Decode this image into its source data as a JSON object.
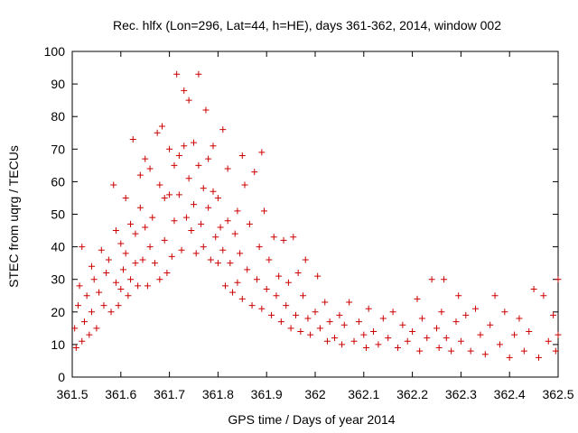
{
  "chart_data": {
    "type": "scatter",
    "title": "Rec. hlfx (Lon=296, Lat=44, h=HE), days 361-362, 2014, window 002",
    "xlabel": "GPS time / Days of year 2014",
    "ylabel": "STEC from uqrg / TECUs",
    "xlim": [
      361.5,
      362.5
    ],
    "ylim": [
      0,
      100
    ],
    "xticks": [
      "361.5",
      "361.6",
      "361.7",
      "361.8",
      "361.9",
      "362",
      "362.1",
      "362.2",
      "362.3",
      "362.4",
      "362.5"
    ],
    "yticks": [
      "0",
      "10",
      "20",
      "30",
      "40",
      "50",
      "60",
      "70",
      "80",
      "90",
      "100"
    ],
    "grid": false,
    "marker": "+",
    "colors": {
      "points": "#cc0000",
      "axis": "#000000"
    },
    "points": [
      [
        361.505,
        15
      ],
      [
        361.508,
        9
      ],
      [
        361.512,
        22
      ],
      [
        361.515,
        28
      ],
      [
        361.52,
        40
      ],
      [
        361.52,
        11
      ],
      [
        361.525,
        17
      ],
      [
        361.53,
        25
      ],
      [
        361.535,
        13
      ],
      [
        361.54,
        34
      ],
      [
        361.54,
        20
      ],
      [
        361.545,
        30
      ],
      [
        361.55,
        15
      ],
      [
        361.555,
        26
      ],
      [
        361.56,
        39
      ],
      [
        361.565,
        22
      ],
      [
        361.57,
        32
      ],
      [
        361.575,
        36
      ],
      [
        361.58,
        20
      ],
      [
        361.585,
        59
      ],
      [
        361.59,
        45
      ],
      [
        361.59,
        29
      ],
      [
        361.595,
        22
      ],
      [
        361.6,
        41
      ],
      [
        361.6,
        27
      ],
      [
        361.605,
        33
      ],
      [
        361.61,
        55
      ],
      [
        361.61,
        38
      ],
      [
        361.615,
        25
      ],
      [
        361.62,
        47
      ],
      [
        361.62,
        30
      ],
      [
        361.625,
        73
      ],
      [
        361.63,
        44
      ],
      [
        361.63,
        35
      ],
      [
        361.635,
        28
      ],
      [
        361.64,
        52
      ],
      [
        361.64,
        62
      ],
      [
        361.645,
        36
      ],
      [
        361.65,
        67
      ],
      [
        361.65,
        46
      ],
      [
        361.655,
        28
      ],
      [
        361.66,
        64
      ],
      [
        361.66,
        40
      ],
      [
        361.665,
        49
      ],
      [
        361.67,
        35
      ],
      [
        361.675,
        75
      ],
      [
        361.68,
        59
      ],
      [
        361.68,
        30
      ],
      [
        361.685,
        77
      ],
      [
        361.69,
        55
      ],
      [
        361.69,
        42
      ],
      [
        361.695,
        32
      ],
      [
        361.7,
        70
      ],
      [
        361.7,
        56
      ],
      [
        361.705,
        37
      ],
      [
        361.71,
        65
      ],
      [
        361.71,
        48
      ],
      [
        361.715,
        93
      ],
      [
        361.72,
        68
      ],
      [
        361.72,
        56
      ],
      [
        361.725,
        39
      ],
      [
        361.73,
        88
      ],
      [
        361.73,
        71
      ],
      [
        361.735,
        49
      ],
      [
        361.74,
        85
      ],
      [
        361.74,
        61
      ],
      [
        361.745,
        45
      ],
      [
        361.75,
        72
      ],
      [
        361.75,
        53
      ],
      [
        361.755,
        38
      ],
      [
        361.76,
        93
      ],
      [
        361.76,
        65
      ],
      [
        361.765,
        47
      ],
      [
        361.77,
        58
      ],
      [
        361.77,
        40
      ],
      [
        361.775,
        82
      ],
      [
        361.78,
        67
      ],
      [
        361.78,
        52
      ],
      [
        361.785,
        36
      ],
      [
        361.79,
        71
      ],
      [
        361.79,
        57
      ],
      [
        361.795,
        43
      ],
      [
        361.8,
        55
      ],
      [
        361.8,
        35
      ],
      [
        361.805,
        46
      ],
      [
        361.81,
        76
      ],
      [
        361.81,
        39
      ],
      [
        361.815,
        28
      ],
      [
        361.82,
        64
      ],
      [
        361.82,
        48
      ],
      [
        361.825,
        35
      ],
      [
        361.83,
        26
      ],
      [
        361.835,
        44
      ],
      [
        361.84,
        51
      ],
      [
        361.84,
        29
      ],
      [
        361.845,
        38
      ],
      [
        361.85,
        68
      ],
      [
        361.85,
        24
      ],
      [
        361.855,
        59
      ],
      [
        361.86,
        33
      ],
      [
        361.865,
        47
      ],
      [
        361.87,
        22
      ],
      [
        361.875,
        63
      ],
      [
        361.88,
        30
      ],
      [
        361.885,
        40
      ],
      [
        361.89,
        69
      ],
      [
        361.89,
        21
      ],
      [
        361.895,
        51
      ],
      [
        361.9,
        27
      ],
      [
        361.905,
        36
      ],
      [
        361.91,
        19
      ],
      [
        361.915,
        43
      ],
      [
        361.92,
        25
      ],
      [
        361.925,
        31
      ],
      [
        361.93,
        17
      ],
      [
        361.935,
        42
      ],
      [
        361.94,
        22
      ],
      [
        361.945,
        29
      ],
      [
        361.95,
        15
      ],
      [
        361.955,
        43
      ],
      [
        361.96,
        19
      ],
      [
        361.965,
        32
      ],
      [
        361.97,
        14
      ],
      [
        361.975,
        25
      ],
      [
        361.98,
        36
      ],
      [
        361.985,
        18
      ],
      [
        361.99,
        13
      ],
      [
        362.0,
        20
      ],
      [
        362.005,
        31
      ],
      [
        362.01,
        15
      ],
      [
        362.02,
        23
      ],
      [
        362.025,
        11
      ],
      [
        362.03,
        17
      ],
      [
        362.04,
        12
      ],
      [
        362.05,
        19
      ],
      [
        362.055,
        10
      ],
      [
        362.06,
        16
      ],
      [
        362.07,
        23
      ],
      [
        362.08,
        11
      ],
      [
        362.09,
        17
      ],
      [
        362.1,
        13
      ],
      [
        362.105,
        9
      ],
      [
        362.11,
        21
      ],
      [
        362.12,
        14
      ],
      [
        362.13,
        10
      ],
      [
        362.14,
        18
      ],
      [
        362.15,
        12
      ],
      [
        362.16,
        20
      ],
      [
        362.17,
        9
      ],
      [
        362.18,
        16
      ],
      [
        362.19,
        11
      ],
      [
        362.2,
        14
      ],
      [
        362.21,
        24
      ],
      [
        362.215,
        8
      ],
      [
        362.22,
        18
      ],
      [
        362.23,
        12
      ],
      [
        362.24,
        30
      ],
      [
        362.25,
        15
      ],
      [
        362.255,
        9
      ],
      [
        362.26,
        20
      ],
      [
        362.265,
        30
      ],
      [
        362.27,
        12
      ],
      [
        362.28,
        8
      ],
      [
        362.29,
        17
      ],
      [
        362.295,
        25
      ],
      [
        362.3,
        11
      ],
      [
        362.31,
        19
      ],
      [
        362.32,
        8
      ],
      [
        362.33,
        21
      ],
      [
        362.34,
        13
      ],
      [
        362.35,
        7
      ],
      [
        362.36,
        16
      ],
      [
        362.37,
        25
      ],
      [
        362.38,
        10
      ],
      [
        362.39,
        20
      ],
      [
        362.4,
        6
      ],
      [
        362.41,
        13
      ],
      [
        362.42,
        18
      ],
      [
        362.43,
        8
      ],
      [
        362.44,
        14
      ],
      [
        362.45,
        27
      ],
      [
        362.46,
        6
      ],
      [
        362.47,
        25
      ],
      [
        362.48,
        11
      ],
      [
        362.49,
        19
      ],
      [
        362.495,
        8
      ],
      [
        362.5,
        30
      ],
      [
        362.5,
        13
      ]
    ]
  }
}
